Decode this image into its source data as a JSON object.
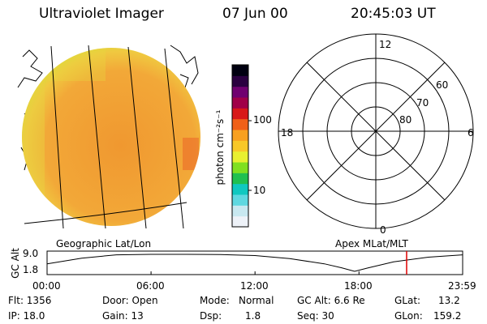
{
  "header": {
    "instrument": "Ultraviolet Imager",
    "date": "07 Jun 00",
    "time": "20:45:03 UT"
  },
  "colorbar": {
    "unit_label": "photon cm⁻²s⁻¹",
    "tick_labels": [
      "100",
      "10"
    ],
    "colors": [
      "#eef2f8",
      "#c8e8f0",
      "#5fd8e0",
      "#10c8c0",
      "#20c050",
      "#80e020",
      "#e8f030",
      "#f8c828",
      "#f8a020",
      "#f06018",
      "#d81818",
      "#a00048",
      "#700070",
      "#2a0040",
      "#000010"
    ]
  },
  "map_left": {
    "caption": "Geographic Lat/Lon",
    "disk_color": "#f0a030",
    "rim_color": "#d8e030"
  },
  "polar_plot": {
    "caption": "Apex MLat/MLT",
    "mlt_labels": {
      "top": "12",
      "right": "6",
      "bottom": "0",
      "left": "18"
    },
    "lat_labels": [
      "60",
      "70",
      "80"
    ]
  },
  "altitude_plot": {
    "ylabel": "GC Alt",
    "ytick_labels": [
      "9.0",
      "1.8"
    ],
    "xtick_labels": [
      "00:00",
      "06:00",
      "12:00",
      "18:00",
      "23:59"
    ],
    "marker_color": "#e00000",
    "chart_data": {
      "type": "line",
      "title": "",
      "xlabel": "",
      "ylabel": "GC Alt",
      "x_range": [
        "00:00",
        "23:59"
      ],
      "ylim": [
        1.8,
        9.0
      ],
      "series": [
        {
          "x": [
            "00:00",
            "02:00",
            "04:00",
            "06:00",
            "08:00",
            "10:00",
            "12:00",
            "14:00",
            "16:00",
            "17:00",
            "17:45",
            "18:30",
            "20:00",
            "22:00",
            "23:59"
          ],
          "values": [
            5.0,
            7.4,
            8.8,
            9.0,
            9.0,
            8.9,
            8.5,
            7.2,
            5.0,
            3.3,
            1.8,
            3.2,
            5.8,
            7.8,
            8.8
          ]
        }
      ],
      "marker_time": "20:45"
    }
  },
  "info": {
    "flt": "Flt: 1356",
    "door": "Door: Open",
    "mode_label": "Mode:",
    "mode_value": "Normal",
    "gc_alt": "GC Alt: 6.6 Re",
    "glat_label": "GLat:",
    "glat_value": "13.2",
    "ip": "IP: 18.0",
    "gain": "Gain: 13",
    "dsp_label": "Dsp:",
    "dsp_value": "1.8",
    "seq": "Seq: 30",
    "glon_label": "GLon:",
    "glon_value": "159.2"
  }
}
